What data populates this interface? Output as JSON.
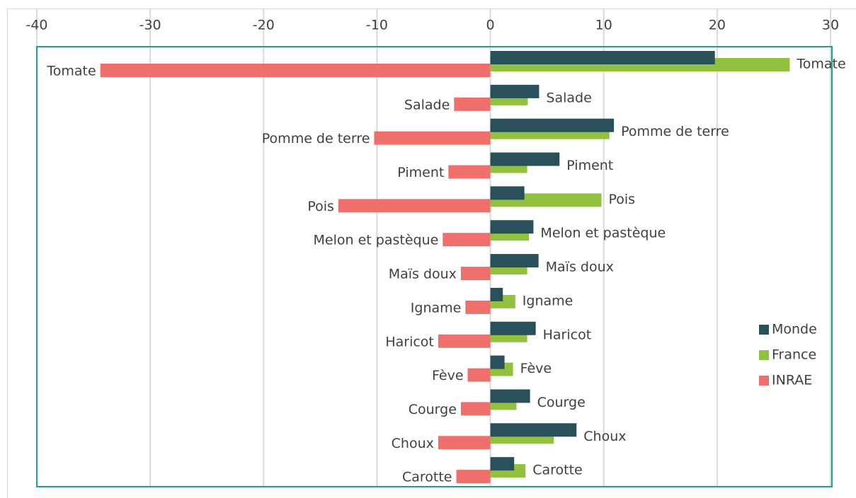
{
  "chart_data": {
    "type": "bar",
    "orientation": "horizontal",
    "categories": [
      "Tomate",
      "Salade",
      "Pomme de terre",
      "Piment",
      "Pois",
      "Melon et pastèque",
      "Maïs doux",
      "Igname",
      "Haricot",
      "Fève",
      "Courge",
      "Choux",
      "Carotte"
    ],
    "series": [
      {
        "name": "Monde",
        "color": "#27505b",
        "values": [
          19.8,
          4.3,
          10.9,
          6.1,
          3.0,
          3.8,
          4.25,
          1.1,
          4.0,
          1.25,
          3.5,
          7.6,
          2.1
        ]
      },
      {
        "name": "France",
        "color": "#92c140",
        "values": [
          26.4,
          3.3,
          10.5,
          3.25,
          9.8,
          3.4,
          3.25,
          2.2,
          3.25,
          2.0,
          2.3,
          5.6,
          3.1
        ]
      },
      {
        "name": "INRAE",
        "color": "#ef6f6c",
        "values": [
          -34.4,
          -3.2,
          -10.25,
          -3.7,
          -13.4,
          -4.2,
          -2.6,
          -2.2,
          -4.6,
          -2.0,
          -2.6,
          -4.6,
          -3.0
        ]
      }
    ],
    "xlim": [
      -40,
      30
    ],
    "xticks": [
      -40,
      -30,
      -20,
      -10,
      0,
      10,
      20,
      30
    ],
    "grid": true,
    "legend": "right"
  }
}
